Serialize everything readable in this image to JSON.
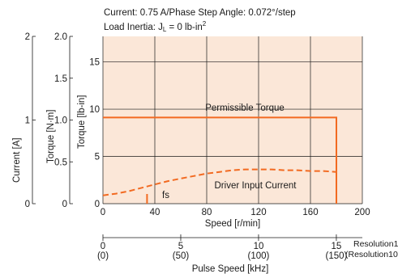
{
  "header": {
    "line1": "Current: 0.75 A/Phase   Step Angle: 0.072°/step",
    "line2_prefix": "Load Inertia: J",
    "line2_sub": "L",
    "line2_mid": " = 0 lb-in",
    "line2_sup": "2"
  },
  "colors": {
    "plot_bg": "#fbe7d8",
    "grid": "#1a1a1a",
    "curve": "#f26a21",
    "text": "#1a1a1a"
  },
  "chart_data": {
    "type": "line",
    "x_axis": {
      "label": "Speed [r/min]",
      "range": [
        0,
        200
      ],
      "ticks": [
        "0",
        "40",
        "80",
        "120",
        "160",
        "200"
      ]
    },
    "y_axis_lbin": {
      "label": "Torque [lb-in]",
      "range": [
        0,
        17.7
      ],
      "ticks": [
        "0",
        "5",
        "10",
        "15"
      ]
    },
    "y_axis_nm": {
      "label": "Torque [N·m]",
      "range": [
        0,
        2.0
      ],
      "ticks": [
        "0",
        "0.5",
        "1.0",
        "1.5",
        "2.0"
      ]
    },
    "y_axis_current": {
      "label": "Current [A]",
      "range": [
        0,
        2.0
      ],
      "ticks": [
        "0",
        "1",
        "2"
      ]
    },
    "pulse_axis": {
      "label": "Pulse Speed [kHz]",
      "range": [
        0,
        16.67
      ],
      "ticks": [
        "0",
        "5",
        "10",
        "15"
      ],
      "ticks_res10": [
        "(0)",
        "(50)",
        "(100)",
        "(150)"
      ],
      "label_res1": "Resolution1",
      "label_res10": "(Resolution10)"
    },
    "series": [
      {
        "name": "Permissible Torque",
        "style": "solid",
        "unit": "N·m",
        "x": [
          0,
          180,
          180
        ],
        "y": [
          1.03,
          1.03,
          0
        ]
      },
      {
        "name": "Driver Input Current",
        "style": "dashed",
        "unit": "A",
        "x": [
          0,
          10,
          20,
          30,
          40,
          50,
          60,
          70,
          80,
          90,
          100,
          110,
          120,
          130,
          140,
          150,
          160,
          170,
          180
        ],
        "y": [
          0.1,
          0.12,
          0.15,
          0.19,
          0.23,
          0.27,
          0.3,
          0.33,
          0.36,
          0.38,
          0.4,
          0.41,
          0.41,
          0.41,
          0.4,
          0.4,
          0.39,
          0.39,
          0.38
        ]
      }
    ],
    "annotations": {
      "fs_label": "fs",
      "fs_x": 34
    },
    "grid": true
  }
}
